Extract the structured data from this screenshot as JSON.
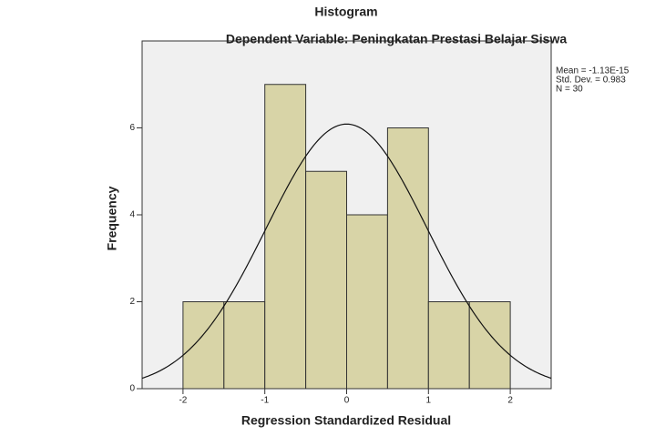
{
  "chart_data": {
    "type": "histogram",
    "title": "Histogram",
    "subtitle": "Dependent Variable: Peningkatan Prestasi Belajar Siswa",
    "xlabel": "Regression Standardized Residual",
    "ylabel": "Frequency",
    "bins": [
      -2,
      -1.5,
      -1,
      -0.5,
      0,
      0.5,
      1,
      1.5,
      2
    ],
    "values": [
      2,
      2,
      7,
      5,
      4,
      6,
      2,
      2
    ],
    "color": "#d4cf9a",
    "xlim": [
      -2.5,
      2.5
    ],
    "xticks": [
      -2,
      -1,
      0,
      1,
      2
    ],
    "ylim": [
      0,
      8
    ],
    "yticks": [
      0,
      2,
      4,
      6
    ],
    "curve": {
      "mean": {
        "value": -1.13e-15,
        "label": "Mean = -1.13E-15"
      },
      "sd": {
        "value": 0.983,
        "label": "Std. Dev. = 0.983"
      },
      "n": {
        "value": 30,
        "label": "N = 30"
      }
    }
  }
}
